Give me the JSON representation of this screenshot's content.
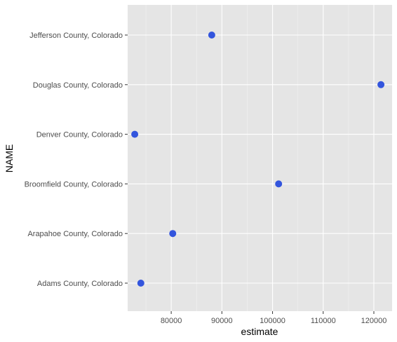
{
  "chart_data": {
    "type": "scatter",
    "xlabel": "estimate",
    "ylabel": "NAME",
    "xlim": [
      71400,
      123600
    ],
    "x_ticks": [
      80000,
      90000,
      100000,
      110000,
      120000
    ],
    "x_tick_labels": [
      "80000",
      "90000",
      "100000",
      "110000",
      "120000"
    ],
    "categories": [
      "Adams County, Colorado",
      "Arapahoe County, Colorado",
      "Broomfield County, Colorado",
      "Denver County, Colorado",
      "Douglas County, Colorado",
      "Jefferson County, Colorado"
    ],
    "values": [
      74000,
      80300,
      101200,
      72800,
      121400,
      88000
    ],
    "grid": true,
    "legend": "none",
    "colors": {
      "point": "#3355dd",
      "panel": "#e5e5e5",
      "grid": "#ffffff"
    }
  }
}
